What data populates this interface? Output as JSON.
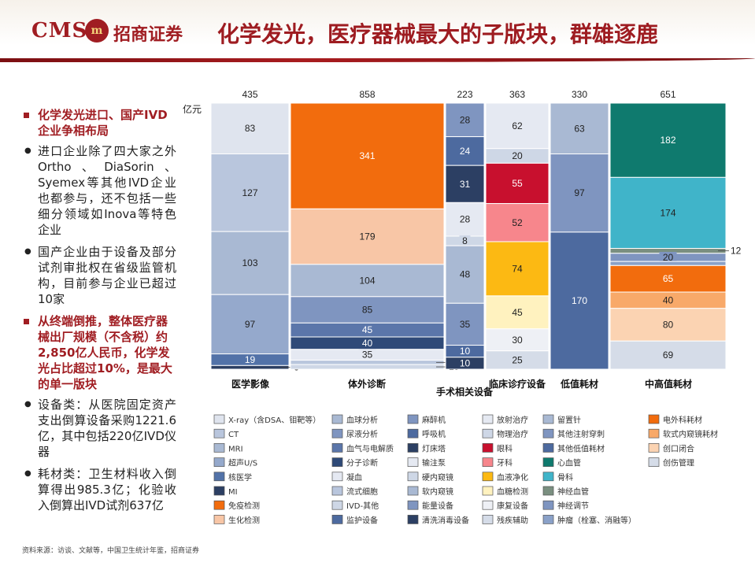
{
  "header": {
    "logo_cms": "CMS",
    "logo_mark": "m",
    "logo_name": "招商证券",
    "title": "化学发光，医疗器械最大的子版块，群雄逐鹿"
  },
  "left_panel": {
    "items": [
      {
        "type": "red",
        "text": "化学发光进口、国产IVD企业争相布局"
      },
      {
        "type": "dot",
        "text": "进口企业除了四大家之外Ortho、DiaSorin、Syemex等其他IVD企业也都参与，还不包括一些细分领域如Inova等特色企业"
      },
      {
        "type": "dot",
        "text": "国产企业由于设备及部分试剂审批权在省级监管机构，目前参与企业已超过10家"
      },
      {
        "type": "red",
        "text": "从终端倒推，整体医疗器械出厂规模（不含税）约2,850亿人民币，化学发光占比超过10%，是最大的单一版块"
      },
      {
        "type": "dot",
        "text": "设备类：从医院固定资产支出倒算设备采购1221.6亿，其中包括220亿IVD仪器"
      },
      {
        "type": "dot",
        "text": "耗材类：卫生材料收入倒算得出985.3亿；化验收入倒算出IVD试剂637亿"
      }
    ]
  },
  "source": "资料来源：访谈、文献等，中国卫生统计年鉴，招商证券",
  "chart_data": {
    "type": "bar",
    "unit": "亿元",
    "columns": [
      {
        "label": "医学影像",
        "total": "435",
        "segments": [
          {
            "name": "X-ray（含DSA、钼靶等）",
            "value": 83,
            "color": "#dfe4ee",
            "label": "83"
          },
          {
            "name": "CT",
            "value": 127,
            "color": "#b9c6dd",
            "label": "127"
          },
          {
            "name": "MRI",
            "value": 103,
            "color": "#a9b9d3",
            "label": "103"
          },
          {
            "name": "超声U/S",
            "value": 97,
            "color": "#95a9cc",
            "label": "97"
          },
          {
            "name": "核医学",
            "value": 19,
            "color": "#5272a8",
            "label": "19"
          },
          {
            "name": "MI",
            "value": 6,
            "color": "#2c3f63",
            "label": "6"
          }
        ]
      },
      {
        "label": "体外诊断",
        "total": "858",
        "segments": [
          {
            "name": "免疫检测",
            "value": 341,
            "color": "#f26c0d",
            "label": "341"
          },
          {
            "name": "生化检测",
            "value": 179,
            "color": "#f8c6a6",
            "label": "179"
          },
          {
            "name": "血球分析",
            "value": 104,
            "color": "#a9b9d3",
            "label": "104"
          },
          {
            "name": "尿液分析",
            "value": 85,
            "color": "#7f95c0",
            "label": "85"
          },
          {
            "name": "血气与电解质",
            "value": 45,
            "color": "#5b76aa",
            "label": "45"
          },
          {
            "name": "分子诊断",
            "value": 40,
            "color": "#2f4a78",
            "label": "40"
          },
          {
            "name": "凝血",
            "value": 35,
            "color": "#e5e9f2",
            "label": "35"
          },
          {
            "name": "流式细胞",
            "value": 14,
            "color": "#b9c6dd",
            "label": "14"
          },
          {
            "name": "IVD-其他",
            "value": 15,
            "color": "#ced7e6",
            "label": "15"
          }
        ]
      },
      {
        "label": "手术相关设备",
        "total": "223",
        "segments": [
          {
            "name": "麻醉机",
            "value": 28,
            "color": "#7f95c0",
            "label": "28"
          },
          {
            "name": "呼吸机",
            "value": 24,
            "color": "#4d6a9f",
            "label": "24"
          },
          {
            "name": "灯床塔",
            "value": 31,
            "color": "#2c3f63",
            "label": "31"
          },
          {
            "name": "输注泵",
            "value": 28,
            "color": "#e5e9f2",
            "label": "28"
          },
          {
            "name": "硬内窥镜",
            "value": 8,
            "color": "#ced7e6",
            "label": "8"
          },
          {
            "name": "软内窥镜",
            "value": 48,
            "color": "#a9b9d3",
            "label": "48"
          },
          {
            "name": "能量设备",
            "value": 35,
            "color": "#7f95c0",
            "label": "35"
          },
          {
            "name": "监护设备",
            "value": 10,
            "color": "#4d6a9f",
            "label": "10"
          },
          {
            "name": "清洗消毒设备",
            "value": 10,
            "color": "#2c3f63",
            "label": "10"
          }
        ]
      },
      {
        "label": "临床诊疗设备",
        "total": "363",
        "segments": [
          {
            "name": "放射治疗",
            "value": 62,
            "color": "#e5e9f2",
            "label": "62"
          },
          {
            "name": "物理治疗",
            "value": 20,
            "color": "#ced7e6",
            "label": "20"
          },
          {
            "name": "眼科",
            "value": 55,
            "color": "#c8102e",
            "label": "55"
          },
          {
            "name": "牙科",
            "value": 52,
            "color": "#f7868c",
            "label": "52"
          },
          {
            "name": "血液净化",
            "value": 74,
            "color": "#fcb913",
            "label": "74"
          },
          {
            "name": "血糖检测",
            "value": 45,
            "color": "#fff2bf",
            "label": "45"
          },
          {
            "name": "康复设备",
            "value": 30,
            "color": "#eef0f5",
            "label": "30"
          },
          {
            "name": "残疾辅助",
            "value": 25,
            "color": "#d5dce8",
            "label": "25"
          }
        ]
      },
      {
        "label": "低值耗材",
        "total": "330",
        "segments": [
          {
            "name": "留置针",
            "value": 63,
            "color": "#a9b9d3",
            "label": "63"
          },
          {
            "name": "其他注射穿刺",
            "value": 97,
            "color": "#7f95c0",
            "label": "97"
          },
          {
            "name": "其他低值耗材",
            "value": 170,
            "color": "#4d6a9f",
            "label": "170"
          }
        ]
      },
      {
        "label": "中高值耗材",
        "total": "651",
        "segments": [
          {
            "name": "心血管",
            "value": 182,
            "color": "#0f7a6e",
            "label": "182"
          },
          {
            "name": "骨科",
            "value": 174,
            "color": "#40b4c9",
            "label": "174"
          },
          {
            "name": "神经血管",
            "value": 12,
            "color": "#7a8f80",
            "label": "12"
          },
          {
            "name": "神经调节",
            "value": 20,
            "color": "#7f95c0",
            "label": "20"
          },
          {
            "name": "肿瘤（栓塞、消融等）",
            "value": 10,
            "color": "#8aa1c8",
            "label": ""
          },
          {
            "name": "电外科耗材",
            "value": 65,
            "color": "#f26c0d",
            "label": "65"
          },
          {
            "name": "软式内窥镜耗材",
            "value": 40,
            "color": "#f8a969",
            "label": "40"
          },
          {
            "name": "创口闭合",
            "value": 80,
            "color": "#fbd3b2",
            "label": "80"
          },
          {
            "name": "创伤管理",
            "value": 69,
            "color": "#d5dce8",
            "label": "69"
          }
        ]
      }
    ],
    "legend": [
      [
        {
          "name": "X-ray（含DSA、钼靶等）",
          "color": "#dfe4ee"
        },
        {
          "name": "CT",
          "color": "#b9c6dd"
        },
        {
          "name": "MRI",
          "color": "#a9b9d3"
        },
        {
          "name": "超声U/S",
          "color": "#95a9cc"
        },
        {
          "name": "核医学",
          "color": "#5272a8"
        },
        {
          "name": "MI",
          "color": "#2c3f63"
        },
        {
          "name": "免疫检测",
          "color": "#f26c0d"
        },
        {
          "name": "生化检测",
          "color": "#f8c6a6"
        }
      ],
      [
        {
          "name": "血球分析",
          "color": "#a9b9d3"
        },
        {
          "name": "尿液分析",
          "color": "#7f95c0"
        },
        {
          "name": "血气与电解质",
          "color": "#5b76aa"
        },
        {
          "name": "分子诊断",
          "color": "#2f4a78"
        },
        {
          "name": "凝血",
          "color": "#e5e9f2"
        },
        {
          "name": "流式细胞",
          "color": "#b9c6dd"
        },
        {
          "name": "IVD-其他",
          "color": "#ced7e6"
        },
        {
          "name": "监护设备",
          "color": "#4d6a9f"
        }
      ],
      [
        {
          "name": "麻醉机",
          "color": "#7f95c0"
        },
        {
          "name": "呼吸机",
          "color": "#4d6a9f"
        },
        {
          "name": "灯床塔",
          "color": "#2c3f63"
        },
        {
          "name": "输注泵",
          "color": "#e5e9f2"
        },
        {
          "name": "硬内窥镜",
          "color": "#ced7e6"
        },
        {
          "name": "软内窥镜",
          "color": "#a9b9d3"
        },
        {
          "name": "能量设备",
          "color": "#7f95c0"
        },
        {
          "name": "清洗消毒设备",
          "color": "#2c3f63"
        }
      ],
      [
        {
          "name": "放射治疗",
          "color": "#e5e9f2"
        },
        {
          "name": "物理治疗",
          "color": "#ced7e6"
        },
        {
          "name": "眼科",
          "color": "#c8102e"
        },
        {
          "name": "牙科",
          "color": "#f7868c"
        },
        {
          "name": "血液净化",
          "color": "#fcb913"
        },
        {
          "name": "血糖检测",
          "color": "#fff2bf"
        },
        {
          "name": "康复设备",
          "color": "#eef0f5"
        },
        {
          "name": "残疾辅助",
          "color": "#d5dce8"
        }
      ],
      [
        {
          "name": "留置针",
          "color": "#a9b9d3"
        },
        {
          "name": "其他注射穿刺",
          "color": "#7f95c0"
        },
        {
          "name": "其他低值耗材",
          "color": "#4d6a9f"
        },
        {
          "name": "心血管",
          "color": "#0f7a6e"
        },
        {
          "name": "骨科",
          "color": "#40b4c9"
        },
        {
          "name": "神经血管",
          "color": "#7a8f80"
        },
        {
          "name": "神经调节",
          "color": "#7f95c0"
        },
        {
          "name": "肿瘤（栓塞、消融等）",
          "color": "#8aa1c8"
        }
      ],
      [
        {
          "name": "电外科耗材",
          "color": "#f26c0d"
        },
        {
          "name": "软式内窥镜耗材",
          "color": "#f8a969"
        },
        {
          "name": "创口闭合",
          "color": "#fbd3b2"
        },
        {
          "name": "创伤管理",
          "color": "#d5dce8"
        }
      ]
    ]
  }
}
